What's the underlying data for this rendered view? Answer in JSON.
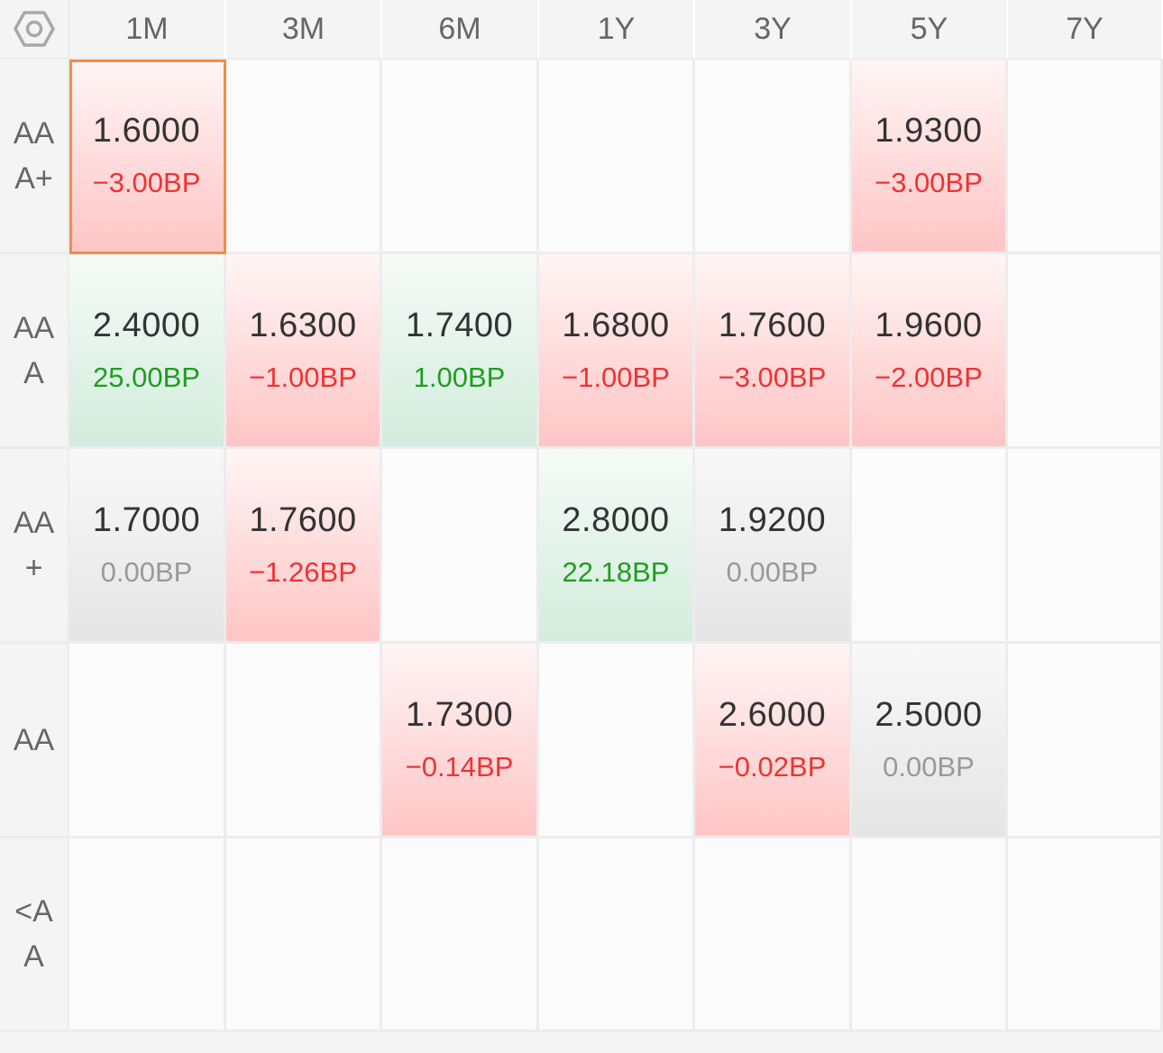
{
  "settings_icon": "hexagon-gear-icon",
  "columns": [
    "1M",
    "3M",
    "6M",
    "1Y",
    "3Y",
    "5Y",
    "7Y"
  ],
  "rows": [
    {
      "label": "AAA+",
      "cells": [
        {
          "rate": "1.6000",
          "change": "−3.00BP",
          "trend": "neg",
          "selected": true
        },
        null,
        null,
        null,
        null,
        {
          "rate": "1.9300",
          "change": "−3.00BP",
          "trend": "neg"
        },
        null
      ]
    },
    {
      "label": "AAA",
      "cells": [
        {
          "rate": "2.4000",
          "change": "25.00BP",
          "trend": "pos"
        },
        {
          "rate": "1.6300",
          "change": "−1.00BP",
          "trend": "neg"
        },
        {
          "rate": "1.7400",
          "change": "1.00BP",
          "trend": "pos"
        },
        {
          "rate": "1.6800",
          "change": "−1.00BP",
          "trend": "neg"
        },
        {
          "rate": "1.7600",
          "change": "−3.00BP",
          "trend": "neg"
        },
        {
          "rate": "1.9600",
          "change": "−2.00BP",
          "trend": "neg"
        },
        null
      ]
    },
    {
      "label": "AA+",
      "cells": [
        {
          "rate": "1.7000",
          "change": "0.00BP",
          "trend": "flat"
        },
        {
          "rate": "1.7600",
          "change": "−1.26BP",
          "trend": "neg"
        },
        null,
        {
          "rate": "2.8000",
          "change": "22.18BP",
          "trend": "pos"
        },
        {
          "rate": "1.9200",
          "change": "0.00BP",
          "trend": "flat"
        },
        null,
        null
      ]
    },
    {
      "label": "AA",
      "cells": [
        null,
        null,
        {
          "rate": "1.7300",
          "change": "−0.14BP",
          "trend": "neg"
        },
        null,
        {
          "rate": "2.6000",
          "change": "−0.02BP",
          "trend": "neg"
        },
        {
          "rate": "2.5000",
          "change": "0.00BP",
          "trend": "flat"
        },
        null
      ]
    },
    {
      "label": "<AA",
      "cells": [
        null,
        null,
        null,
        null,
        null,
        null,
        null
      ]
    }
  ],
  "colors": {
    "negative_text": "#ee3333",
    "positive_text": "#1e9e1e",
    "flat_text": "#999999",
    "selected_border": "#f08d4a"
  }
}
